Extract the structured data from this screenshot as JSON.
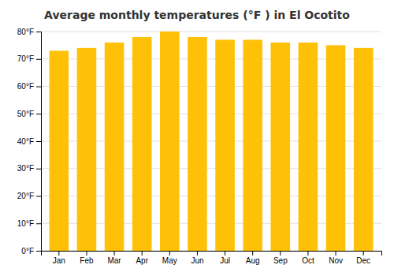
{
  "chart_data": {
    "type": "bar",
    "title": "Average monthly temperatures (°F ) in El Ocotito",
    "categories": [
      "Jan",
      "Feb",
      "Mar",
      "Apr",
      "May",
      "Jun",
      "Jul",
      "Aug",
      "Sep",
      "Oct",
      "Nov",
      "Dec"
    ],
    "values": [
      73,
      74,
      76,
      78,
      80,
      78,
      77,
      77,
      76,
      76,
      75,
      74
    ],
    "color": "#FFC107",
    "ylim": [
      0,
      80
    ],
    "yticks": [
      {
        "value": 0,
        "label": "0°F"
      },
      {
        "value": 10,
        "label": "10°F"
      },
      {
        "value": 20,
        "label": "20°F"
      },
      {
        "value": 30,
        "label": "30°F"
      },
      {
        "value": 40,
        "label": "40°F"
      },
      {
        "value": 50,
        "label": "50°F"
      },
      {
        "value": 60,
        "label": "60°F"
      },
      {
        "value": 70,
        "label": "70°F"
      },
      {
        "value": 80,
        "label": "80°F"
      }
    ],
    "grid": true
  }
}
